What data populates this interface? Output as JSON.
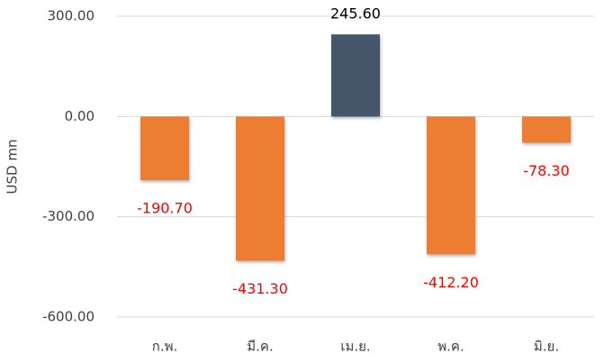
{
  "chart_data": {
    "type": "bar",
    "y_label": "USD mn",
    "categories": [
      "ก.พ.",
      "มี.ค.",
      "เม.ย.",
      "พ.ค.",
      "มิ.ย."
    ],
    "values": [
      -190.7,
      -431.3,
      245.6,
      -412.2,
      -78.3
    ],
    "value_labels": [
      "-190.70",
      "-431.30",
      "245.60",
      "-412.20",
      "-78.30"
    ],
    "colors": [
      "#ED7D31",
      "#ED7D31",
      "#44546A",
      "#ED7D31",
      "#ED7D31"
    ],
    "value_label_colors": [
      "#FF0000",
      "#FF0000",
      "#000000",
      "#FF0000",
      "#FF0000"
    ],
    "ylim": [
      -600,
      300
    ],
    "yticks": [
      {
        "value": 300,
        "label": "300.00"
      },
      {
        "value": 0,
        "label": "0.00"
      },
      {
        "value": -300,
        "label": "-300.00"
      },
      {
        "value": -600,
        "label": "-600.00"
      }
    ],
    "grid": true
  }
}
